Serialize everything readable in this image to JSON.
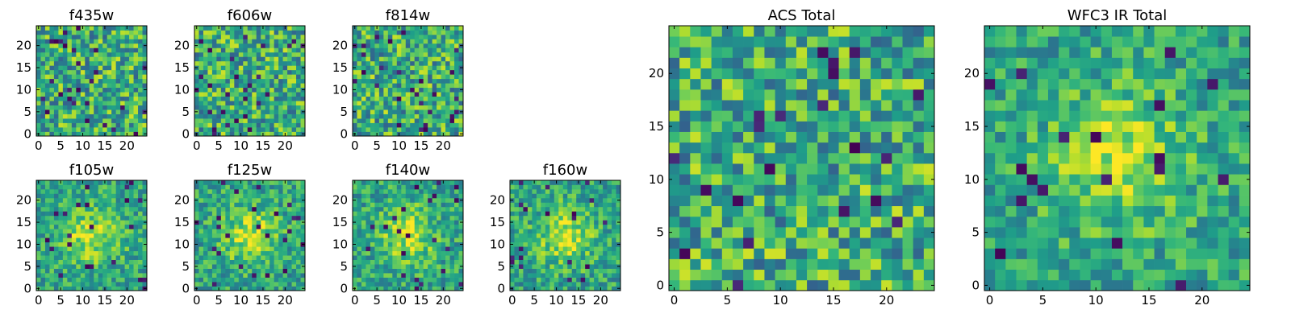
{
  "chart_data": [
    {
      "type": "heatmap",
      "title": "f435w",
      "xlabel": "",
      "ylabel": "",
      "xlim": [
        0,
        24
      ],
      "ylim": [
        0,
        24
      ],
      "xticks": [
        "0",
        "5",
        "10",
        "15",
        "20"
      ],
      "yticks": [
        "0",
        "5",
        "10",
        "15",
        "20"
      ],
      "colormap": "viridis",
      "grid_size": 25,
      "pattern": "noise",
      "seed": 11
    },
    {
      "type": "heatmap",
      "title": "f606w",
      "xlabel": "",
      "ylabel": "",
      "xlim": [
        0,
        24
      ],
      "ylim": [
        0,
        24
      ],
      "xticks": [
        "0",
        "5",
        "10",
        "15",
        "20"
      ],
      "yticks": [
        "0",
        "5",
        "10",
        "15",
        "20"
      ],
      "colormap": "viridis",
      "grid_size": 25,
      "pattern": "noise",
      "seed": 23
    },
    {
      "type": "heatmap",
      "title": "f814w",
      "xlabel": "",
      "ylabel": "",
      "xlim": [
        0,
        24
      ],
      "ylim": [
        0,
        24
      ],
      "xticks": [
        "0",
        "5",
        "10",
        "15",
        "20"
      ],
      "yticks": [
        "0",
        "5",
        "10",
        "15",
        "20"
      ],
      "colormap": "viridis",
      "grid_size": 25,
      "pattern": "noise",
      "seed": 37
    },
    {
      "type": "heatmap",
      "title": "f105w",
      "xlabel": "",
      "ylabel": "",
      "xlim": [
        0,
        24
      ],
      "ylim": [
        0,
        24
      ],
      "xticks": [
        "0",
        "5",
        "10",
        "15",
        "20"
      ],
      "yticks": [
        "0",
        "5",
        "10",
        "15",
        "20"
      ],
      "colormap": "viridis",
      "grid_size": 25,
      "pattern": "source",
      "seed": 41
    },
    {
      "type": "heatmap",
      "title": "f125w",
      "xlabel": "",
      "ylabel": "",
      "xlim": [
        0,
        24
      ],
      "ylim": [
        0,
        24
      ],
      "xticks": [
        "0",
        "5",
        "10",
        "15",
        "20"
      ],
      "yticks": [
        "0",
        "5",
        "10",
        "15",
        "20"
      ],
      "colormap": "viridis",
      "grid_size": 25,
      "pattern": "source",
      "seed": 53
    },
    {
      "type": "heatmap",
      "title": "f140w",
      "xlabel": "",
      "ylabel": "",
      "xlim": [
        0,
        24
      ],
      "ylim": [
        0,
        24
      ],
      "xticks": [
        "0",
        "5",
        "10",
        "15",
        "20"
      ],
      "yticks": [
        "0",
        "5",
        "10",
        "15",
        "20"
      ],
      "colormap": "viridis",
      "grid_size": 25,
      "pattern": "source",
      "seed": 67
    },
    {
      "type": "heatmap",
      "title": "f160w",
      "xlabel": "",
      "ylabel": "",
      "xlim": [
        0,
        24
      ],
      "ylim": [
        0,
        24
      ],
      "xticks": [
        "0",
        "5",
        "10",
        "15",
        "20"
      ],
      "yticks": [
        "0",
        "5",
        "10",
        "15",
        "20"
      ],
      "colormap": "viridis",
      "grid_size": 25,
      "pattern": "source",
      "seed": 79
    },
    {
      "type": "heatmap",
      "title": "ACS Total",
      "xlabel": "",
      "ylabel": "",
      "xlim": [
        0,
        24
      ],
      "ylim": [
        0,
        24
      ],
      "xticks": [
        "0",
        "5",
        "10",
        "15",
        "20"
      ],
      "yticks": [
        "0",
        "5",
        "10",
        "15",
        "20"
      ],
      "colormap": "viridis",
      "grid_size": 25,
      "pattern": "noise",
      "seed": 97
    },
    {
      "type": "heatmap",
      "title": "WFC3 IR Total",
      "xlabel": "",
      "ylabel": "",
      "xlim": [
        0,
        24
      ],
      "ylim": [
        0,
        24
      ],
      "xticks": [
        "0",
        "5",
        "10",
        "15",
        "20"
      ],
      "yticks": [
        "0",
        "5",
        "10",
        "15",
        "20"
      ],
      "colormap": "viridis",
      "grid_size": 25,
      "pattern": "source",
      "seed": 101
    }
  ]
}
